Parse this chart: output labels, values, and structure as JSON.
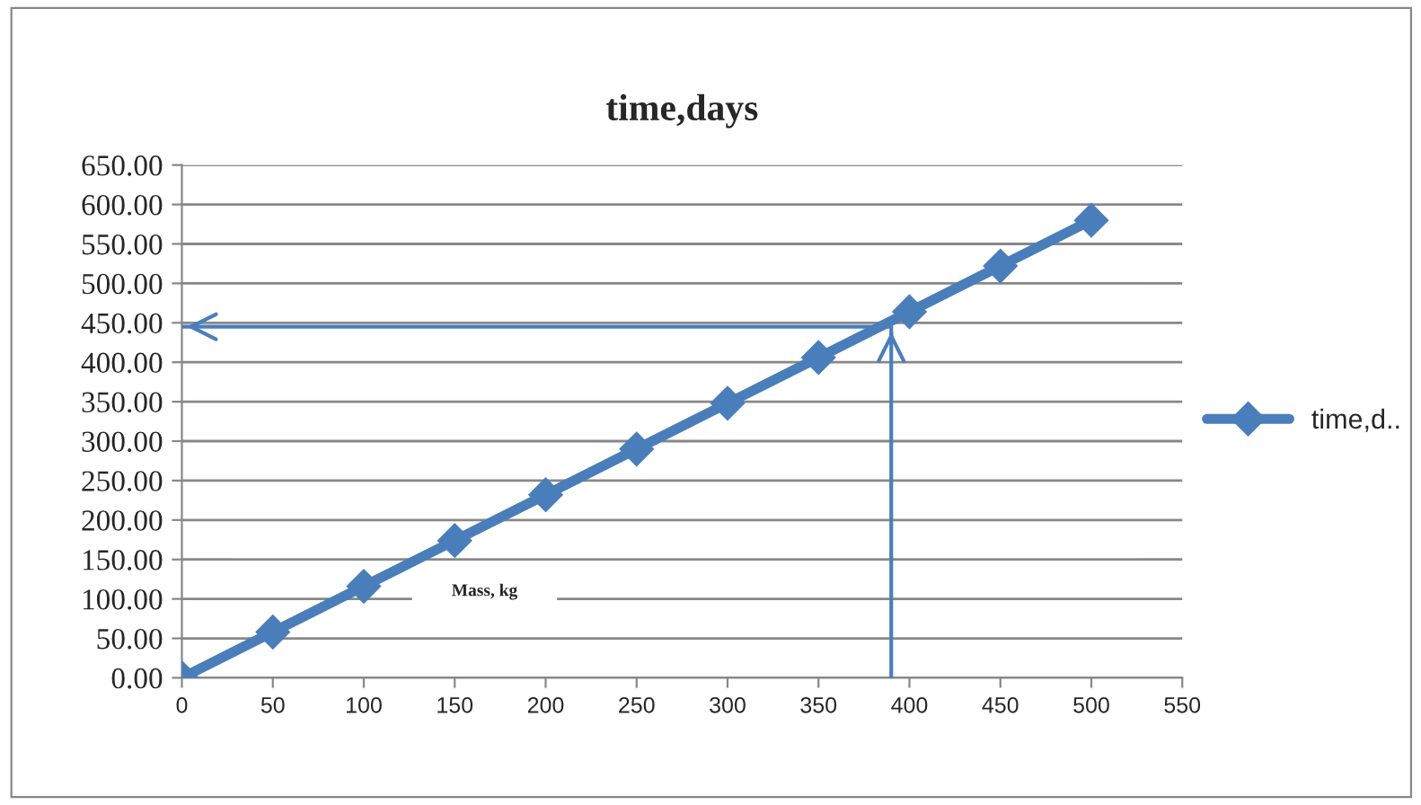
{
  "chart_data": {
    "type": "line",
    "title": "time,days",
    "annotations": [
      "Mass, kg"
    ],
    "x": [
      0,
      50,
      100,
      150,
      200,
      250,
      300,
      350,
      400,
      450,
      500
    ],
    "series": [
      {
        "name": "time,d..",
        "color": "#4a7ebb",
        "values": [
          0,
          58,
          116,
          174,
          232,
          290,
          348,
          406,
          464,
          522,
          580
        ]
      }
    ],
    "xlim": [
      0,
      550
    ],
    "xticks": [
      0,
      50,
      100,
      150,
      200,
      250,
      300,
      350,
      400,
      450,
      500,
      550
    ],
    "ylim": [
      0,
      650
    ],
    "yticks": [
      {
        "value": 0,
        "label": "0.00"
      },
      {
        "value": 50,
        "label": "50.00"
      },
      {
        "value": 100,
        "label": "100.00"
      },
      {
        "value": 150,
        "label": "150.00"
      },
      {
        "value": 200,
        "label": "200.00"
      },
      {
        "value": 250,
        "label": "250.00"
      },
      {
        "value": 300,
        "label": "300.00"
      },
      {
        "value": 350,
        "label": "350.00"
      },
      {
        "value": 400,
        "label": "400.00"
      },
      {
        "value": 450,
        "label": "450.00"
      },
      {
        "value": 500,
        "label": "500.00"
      },
      {
        "value": 550,
        "label": "550.00"
      },
      {
        "value": 600,
        "label": "600.00"
      },
      {
        "value": 650,
        "label": "650.00"
      }
    ],
    "ref_lines": [
      {
        "axis": "x",
        "value": 390,
        "color": "#4a7ebb"
      },
      {
        "axis": "y",
        "value": 445,
        "color": "#4a7ebb"
      }
    ],
    "grid": "y",
    "legend": "right",
    "marker": "diamond",
    "line_style": "solid"
  }
}
